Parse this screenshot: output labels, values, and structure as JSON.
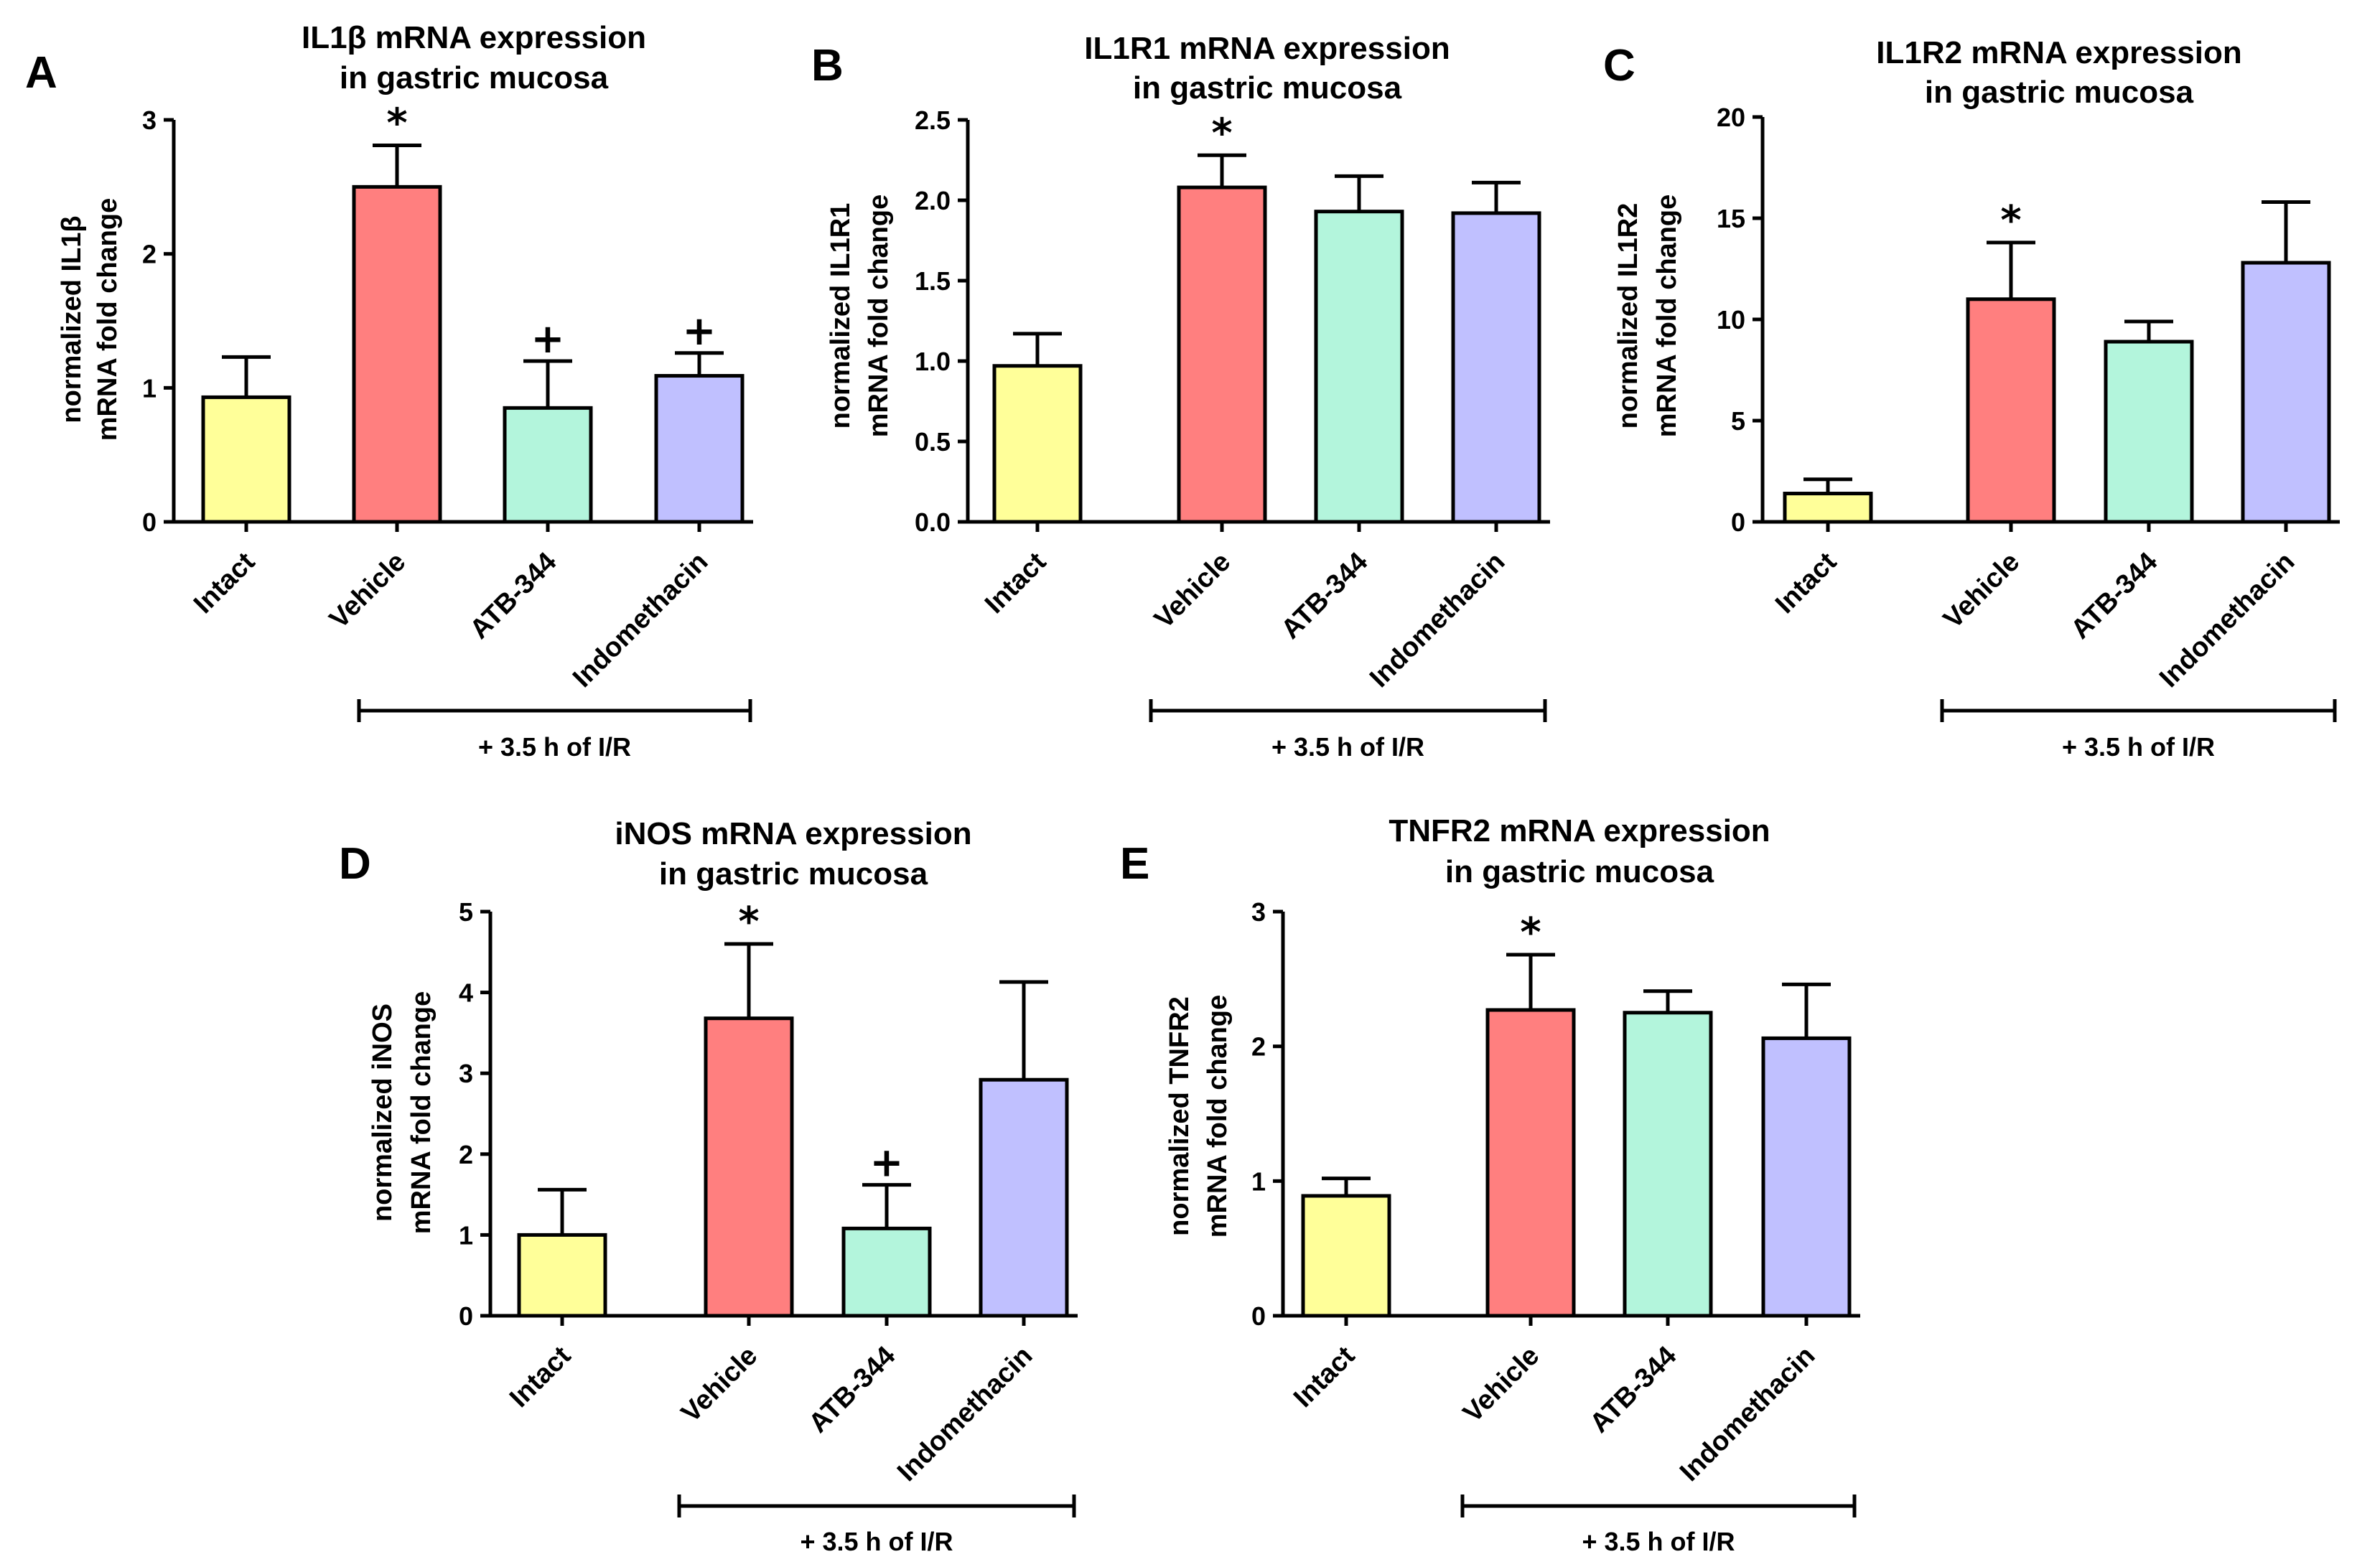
{
  "group_label": "+ 3.5 h of I/R",
  "chart_data": [
    {
      "type": "bar",
      "panel": "A",
      "title": [
        "IL1β mRNA expression",
        "in gastric mucosa"
      ],
      "ylabel": [
        "normalized IL1β",
        "mRNA fold change"
      ],
      "categories": [
        "Intact",
        "Vehicle",
        "ATB-344",
        "Indomethacin"
      ],
      "values": [
        0.93,
        2.5,
        0.85,
        1.09
      ],
      "errors": [
        0.3,
        0.31,
        0.35,
        0.17
      ],
      "marks": [
        "",
        "*",
        "+",
        "+"
      ],
      "colors": [
        "#ffff99",
        "#ff7f7f",
        "#b3f5dc",
        "#c0c0ff"
      ],
      "ylim": [
        0,
        3
      ],
      "yticks": [
        "0",
        "1",
        "2",
        "3"
      ]
    },
    {
      "type": "bar",
      "panel": "B",
      "title": [
        "IL1R1 mRNA expression",
        "in gastric mucosa"
      ],
      "ylabel": [
        "normalized IL1R1",
        "mRNA fold change"
      ],
      "categories": [
        "Intact",
        "Vehicle",
        "ATB-344",
        "Indomethacin"
      ],
      "values": [
        0.97,
        2.08,
        1.93,
        1.92
      ],
      "errors": [
        0.2,
        0.2,
        0.22,
        0.19
      ],
      "marks": [
        "",
        "*",
        "",
        ""
      ],
      "colors": [
        "#ffff99",
        "#ff7f7f",
        "#b3f5dc",
        "#c0c0ff"
      ],
      "ylim": [
        0,
        2.5
      ],
      "yticks": [
        "0.0",
        "0.5",
        "1.0",
        "1.5",
        "2.0",
        "2.5"
      ]
    },
    {
      "type": "bar",
      "panel": "C",
      "title": [
        "IL1R2 mRNA expression",
        "in gastric mucosa"
      ],
      "ylabel": [
        "normalized IL1R2",
        "mRNA fold change"
      ],
      "categories": [
        "Intact",
        "Vehicle",
        "ATB-344",
        "Indomethacin"
      ],
      "values": [
        1.4,
        11.0,
        8.9,
        12.8
      ],
      "errors": [
        0.7,
        2.8,
        1.0,
        3.0
      ],
      "marks": [
        "",
        "*",
        "",
        ""
      ],
      "colors": [
        "#ffff99",
        "#ff7f7f",
        "#b3f5dc",
        "#c0c0ff"
      ],
      "ylim": [
        0,
        20
      ],
      "yticks": [
        "0",
        "5",
        "10",
        "15",
        "20"
      ]
    },
    {
      "type": "bar",
      "panel": "D",
      "title": [
        "iNOS mRNA expression",
        "in gastric mucosa"
      ],
      "ylabel": [
        "normalized iNOS",
        "mRNA fold change"
      ],
      "categories": [
        "Intact",
        "Vehicle",
        "ATB-344",
        "Indomethacin"
      ],
      "values": [
        1.0,
        3.68,
        1.08,
        2.92
      ],
      "errors": [
        0.56,
        0.92,
        0.54,
        1.21
      ],
      "marks": [
        "",
        "*",
        "+",
        ""
      ],
      "colors": [
        "#ffff99",
        "#ff7f7f",
        "#b3f5dc",
        "#c0c0ff"
      ],
      "ylim": [
        0,
        5
      ],
      "yticks": [
        "0",
        "1",
        "2",
        "3",
        "4",
        "5"
      ]
    },
    {
      "type": "bar",
      "panel": "E",
      "title": [
        "TNFR2 mRNA expression",
        "in gastric mucosa"
      ],
      "ylabel": [
        "normalized TNFR2",
        "mRNA fold change"
      ],
      "categories": [
        "Intact",
        "Vehicle",
        "ATB-344",
        "Indomethacin"
      ],
      "values": [
        0.89,
        2.27,
        2.25,
        2.06
      ],
      "errors": [
        0.13,
        0.41,
        0.16,
        0.4
      ],
      "marks": [
        "",
        "*",
        "",
        ""
      ],
      "colors": [
        "#ffff99",
        "#ff7f7f",
        "#b3f5dc",
        "#c0c0ff"
      ],
      "ylim": [
        0,
        3
      ],
      "yticks": [
        "0",
        "1",
        "2",
        "3"
      ]
    }
  ]
}
